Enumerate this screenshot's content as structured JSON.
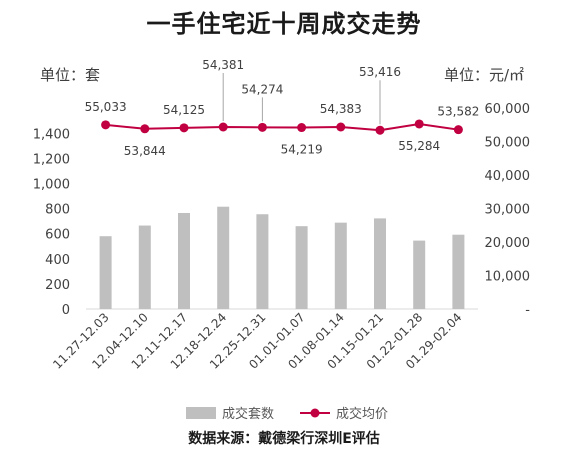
{
  "chart_data": {
    "type": "bar",
    "title": "一手住宅近十周成交走势",
    "categories": [
      "11.27-12.03",
      "12.04-12.10",
      "12.11-12.17",
      "12.18-12.24",
      "12.25-12.31",
      "01.01-01.07",
      "01.08-01.14",
      "01.15-01.21",
      "01.22-01.28",
      "01.29-02.04"
    ],
    "series": [
      {
        "name": "成交套数",
        "type": "bar",
        "axis": "left",
        "values": [
          580,
          665,
          765,
          815,
          755,
          660,
          688,
          722,
          545,
          592
        ],
        "color": "#bfbfbf"
      },
      {
        "name": "成交均价",
        "type": "line",
        "axis": "right",
        "values": [
          55033,
          53844,
          54125,
          54381,
          54274,
          54219,
          54383,
          53416,
          55284,
          53582
        ],
        "labels": [
          "55,033",
          "53,844",
          "54,125",
          "54,381",
          "54,274",
          "54,219",
          "54,383",
          "53,416",
          "55,284",
          "53,582"
        ],
        "color": "#c00040"
      }
    ],
    "y_left": {
      "unit_label": "单位：套",
      "ylim": [
        0,
        2000
      ],
      "ticks": [
        "0",
        "200",
        "400",
        "600",
        "800",
        "1,000",
        "1,200",
        "1,400"
      ]
    },
    "y_right": {
      "unit_label": "单位：元/㎡",
      "ylim": [
        0,
        75000
      ],
      "ticks": [
        "-",
        "10,000",
        "20,000",
        "30,000",
        "40,000",
        "50,000",
        "60,000"
      ]
    },
    "legend_position": "bottom",
    "grid": false
  },
  "source_text": "数据来源：戴德梁行深圳E评估"
}
